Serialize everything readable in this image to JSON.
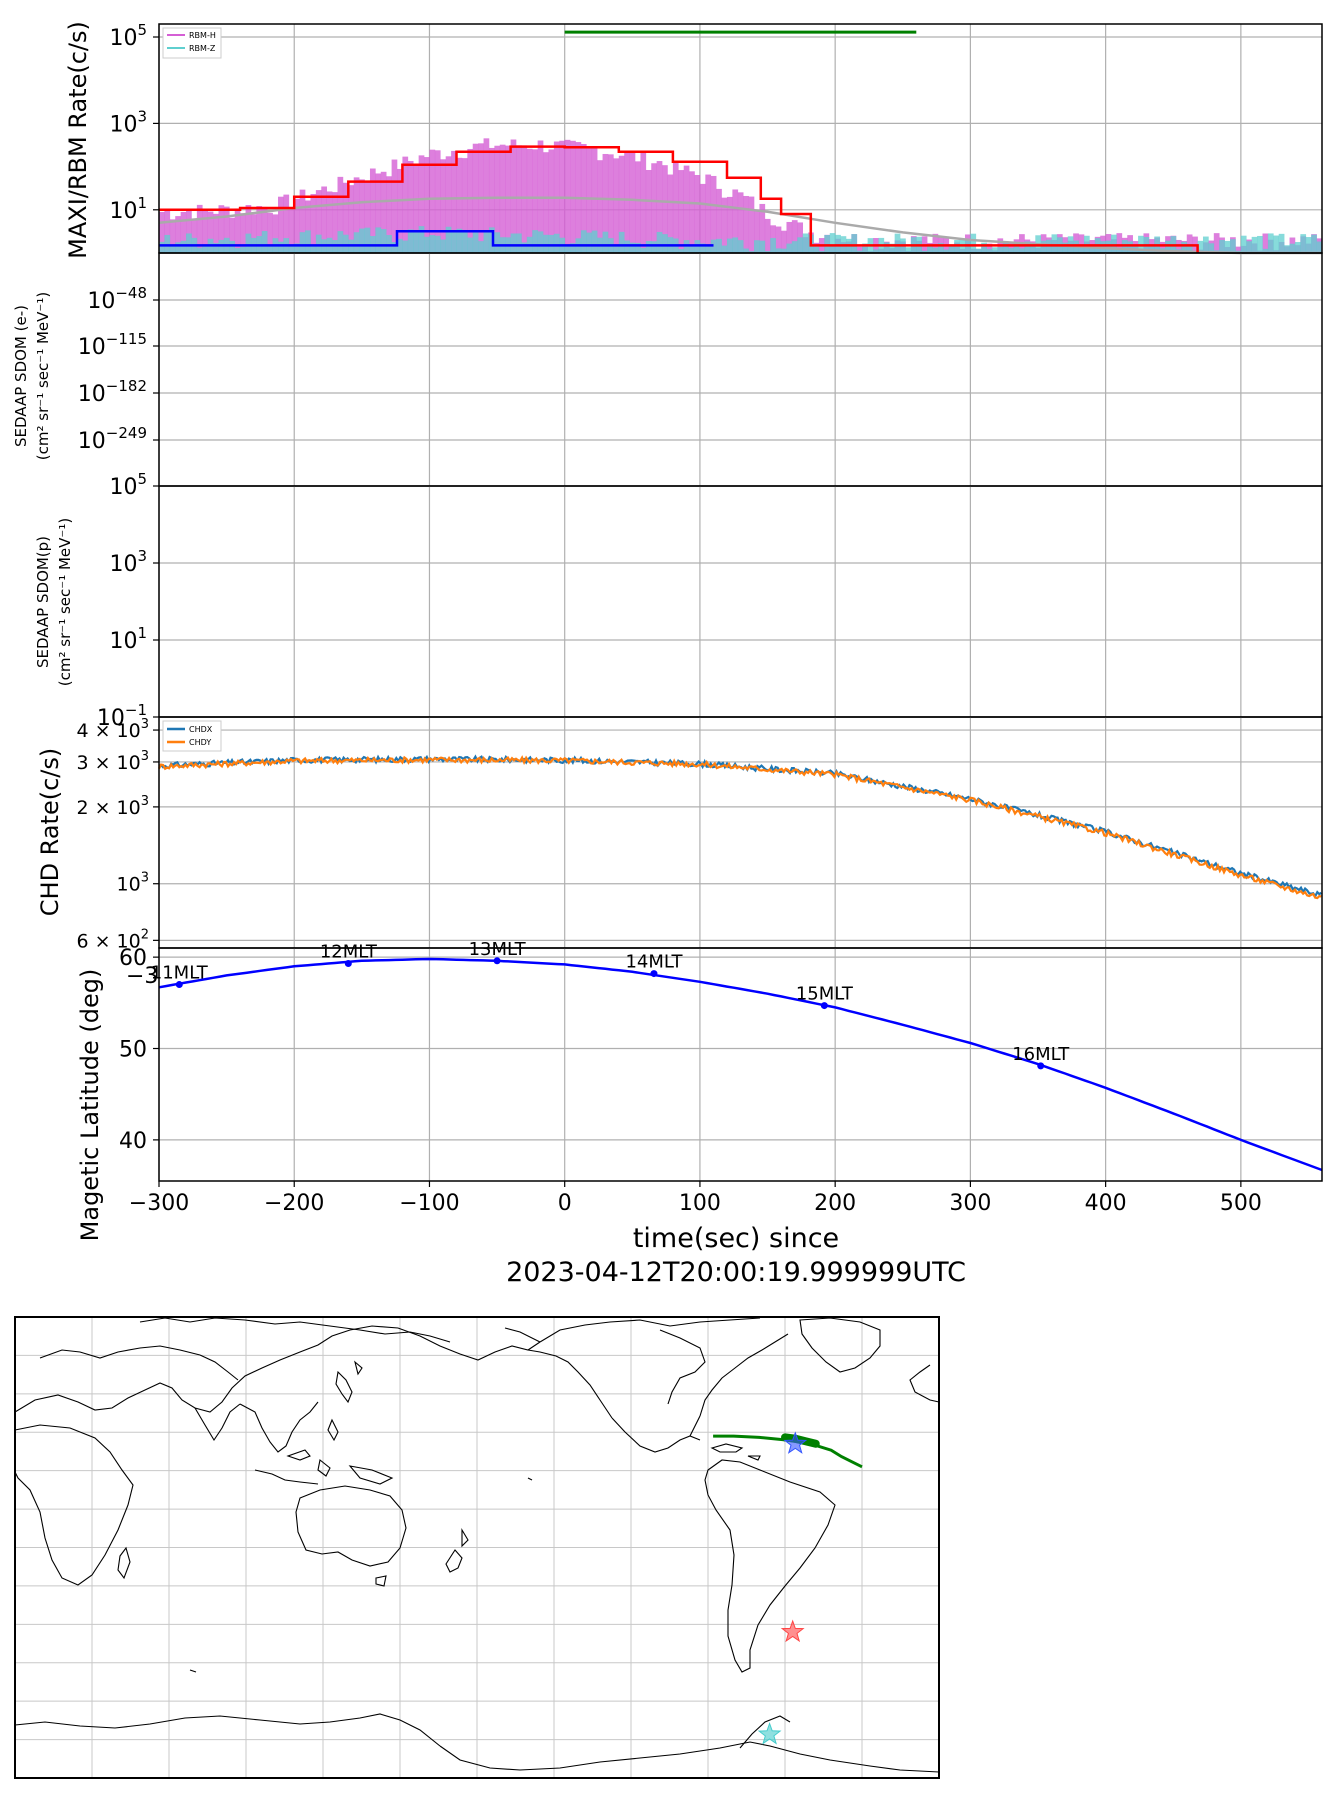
{
  "chart_data": [
    {
      "panel": "maxi-rbm",
      "type": "line",
      "ylabel": "MAXI/RBM Rate(c/s)",
      "yscale": "log",
      "ylim": [
        1,
        200000
      ],
      "xlim": [
        -300,
        560
      ],
      "y_ticks": [
        {
          "v": 100000,
          "base": "10",
          "exp": "5"
        },
        {
          "v": 1000,
          "base": "10",
          "exp": "3"
        },
        {
          "v": 10,
          "base": "10",
          "exp": "1"
        }
      ],
      "legend": {
        "placement": "top-left",
        "entries": [
          {
            "name": "RBM-H",
            "color": "#d55fd5"
          },
          {
            "name": "RBM-Z",
            "color": "#5fcfcf"
          }
        ]
      },
      "series": [
        {
          "name": "RBM-H",
          "color": "#d55fd5",
          "x": [
            -300,
            -260,
            -220,
            -180,
            -140,
            -100,
            -60,
            -20,
            20,
            60,
            100,
            130,
            150,
            180,
            220,
            300,
            400,
            500,
            560
          ],
          "y": [
            9,
            10,
            12,
            30,
            80,
            200,
            320,
            330,
            260,
            150,
            60,
            20,
            8,
            3,
            2,
            2,
            2,
            2,
            2
          ]
        },
        {
          "name": "RBM-Z",
          "color": "#5fcfcf",
          "x": [
            -300,
            -200,
            -100,
            0,
            100,
            150,
            200,
            300,
            400,
            500,
            560
          ],
          "y": [
            2,
            2.5,
            3,
            2.5,
            2,
            2,
            2,
            2,
            2,
            2,
            2
          ]
        },
        {
          "name": "",
          "color": "#ff0000",
          "x": [
            -300,
            -240,
            -200,
            -160,
            -120,
            -80,
            -40,
            0,
            40,
            80,
            120,
            145,
            160,
            182,
            220,
            300,
            400,
            468
          ],
          "y": [
            10,
            11,
            20,
            45,
            110,
            220,
            290,
            280,
            220,
            130,
            55,
            18,
            8,
            1.5,
            1.5,
            1.5,
            1.5,
            1
          ]
        },
        {
          "name": "",
          "color": "#0000ff",
          "x": [
            -300,
            -124,
            -124,
            -53,
            -53,
            110
          ],
          "y": [
            1.5,
            1.5,
            3.2,
            3.2,
            1.5,
            1.5
          ]
        },
        {
          "name": "",
          "color": "#aaaaaa",
          "x": [
            -300,
            -250,
            -200,
            -150,
            -100,
            -50,
            0,
            50,
            100,
            150,
            200,
            250,
            300,
            350,
            400,
            450,
            500,
            560
          ],
          "y": [
            5,
            7,
            11,
            15,
            18,
            19,
            19,
            17,
            14,
            9,
            5,
            3,
            2,
            1.6,
            1.3,
            1.1,
            1,
            1
          ]
        },
        {
          "name": "",
          "color": "#008000",
          "x": [
            0,
            260
          ],
          "y": [
            130000,
            130000
          ]
        }
      ]
    },
    {
      "panel": "sedaap-e",
      "type": "line",
      "ylabel_line1": "SEDAAP SDOM (e-)",
      "ylabel_line2": "(cm² sr⁻¹ sec⁻¹ MeV⁻¹)",
      "yscale": "log",
      "y_ticks": [
        {
          "base": "10",
          "exp": "−48"
        },
        {
          "base": "10",
          "exp": "−115"
        },
        {
          "base": "10",
          "exp": "−182"
        },
        {
          "base": "10",
          "exp": "−249"
        }
      ],
      "series": []
    },
    {
      "panel": "sedaap-p",
      "type": "line",
      "ylabel_line1": "SEDAAP SDOM(p)",
      "ylabel_line2": "(cm² sr⁻¹ sec⁻¹ MeV⁻¹)",
      "yscale": "log",
      "ylim": [
        0.1,
        100000
      ],
      "y_ticks": [
        {
          "v": 100000,
          "base": "10",
          "exp": "5"
        },
        {
          "v": 1000,
          "base": "10",
          "exp": "3"
        },
        {
          "v": 10,
          "base": "10",
          "exp": "1"
        },
        {
          "v": 0.1,
          "base": "10",
          "exp": "−1"
        }
      ],
      "series": []
    },
    {
      "panel": "chd",
      "type": "line",
      "ylabel": "CHD Rate(c/s)",
      "yscale": "log",
      "ylim": [
        560,
        4500
      ],
      "y_ticks": [
        {
          "v": 4000,
          "label": "4 × 10",
          "exp": "3"
        },
        {
          "v": 3000,
          "label": "3 × 10",
          "exp": "3"
        },
        {
          "v": 2000,
          "label": "2 × 10",
          "exp": "3"
        },
        {
          "v": 1000,
          "label": "10",
          "exp": "3"
        },
        {
          "v": 600,
          "label": "6 × 10",
          "exp": "2"
        }
      ],
      "legend": {
        "placement": "top-left",
        "entries": [
          {
            "name": "CHDX",
            "color": "#1f77b4"
          },
          {
            "name": "CHDY",
            "color": "#ff7f0e"
          }
        ]
      },
      "series": [
        {
          "name": "CHDX",
          "color": "#1f77b4",
          "x": [
            -300,
            -200,
            -100,
            0,
            100,
            200,
            300,
            400,
            500,
            560
          ],
          "y": [
            2900,
            3050,
            3080,
            3050,
            2950,
            2700,
            2150,
            1600,
            1100,
            900
          ]
        },
        {
          "name": "CHDY",
          "color": "#ff7f0e",
          "x": [
            -300,
            -200,
            -100,
            0,
            100,
            200,
            300,
            400,
            500,
            560
          ],
          "y": [
            2880,
            3030,
            3060,
            3040,
            2940,
            2680,
            2130,
            1580,
            1080,
            880
          ]
        }
      ]
    },
    {
      "panel": "latitude",
      "type": "line",
      "ylabel": "Magetic Latitude  (deg)",
      "ylim": [
        35.5,
        61
      ],
      "y_ticks": [
        {
          "v": 60,
          "label": "60"
        },
        {
          "v": 50,
          "label": "50"
        },
        {
          "v": 40,
          "label": "40"
        }
      ],
      "x_ticks": [
        "−300",
        "−200",
        "−100",
        "0",
        "100",
        "200",
        "300",
        "400",
        "500"
      ],
      "xlabel_line1": "time(sec) since",
      "xlabel_line2": "2023-04-12T20:00:19.999999UTC",
      "series": [
        {
          "name": "",
          "color": "#0000ff",
          "x": [
            -300,
            -250,
            -200,
            -150,
            -100,
            -50,
            0,
            50,
            100,
            150,
            200,
            250,
            300,
            350,
            400,
            450,
            500,
            560
          ],
          "y": [
            56.7,
            58.0,
            59.0,
            59.6,
            59.8,
            59.6,
            59.2,
            58.4,
            57.3,
            56.0,
            54.5,
            52.6,
            50.6,
            48.3,
            45.7,
            42.9,
            40.0,
            36.7
          ]
        }
      ],
      "annotations": [
        {
          "text": "11MLT",
          "x": -285,
          "y": 57.0
        },
        {
          "text": "12MLT",
          "x": -160,
          "y": 59.3
        },
        {
          "text": "13MLT",
          "x": -50,
          "y": 59.6
        },
        {
          "text": "14MLT",
          "x": 66,
          "y": 58.2
        },
        {
          "text": "15MLT",
          "x": 192,
          "y": 54.7
        },
        {
          "text": "16MLT",
          "x": 352,
          "y": 48.1
        }
      ],
      "stray_tick_label": "−3"
    },
    {
      "panel": "ground-track-map",
      "type": "map",
      "projection": "plate-carree",
      "central_longitude": 150,
      "gridlines": true,
      "track": {
        "color": "#008000",
        "lon": [
          -118,
          -110,
          -100,
          -90,
          -80,
          -72,
          -68,
          -64,
          -60
        ],
        "lat": [
          43.5,
          43.5,
          43.0,
          42.0,
          40.5,
          38.0,
          35.5,
          33.5,
          31.5
        ]
      },
      "track_thick": {
        "lon": [
          -90,
          -86,
          -82,
          -78
        ],
        "lat": [
          43.0,
          42.5,
          41.5,
          40.5
        ]
      },
      "stars": [
        {
          "color": "#3355ff",
          "lon": -86,
          "lat": 40.5
        },
        {
          "color": "#ff4444",
          "lon": -87,
          "lat": -33.0
        },
        {
          "color": "#44cccc",
          "lon": -96,
          "lat": -73.0
        }
      ]
    }
  ]
}
